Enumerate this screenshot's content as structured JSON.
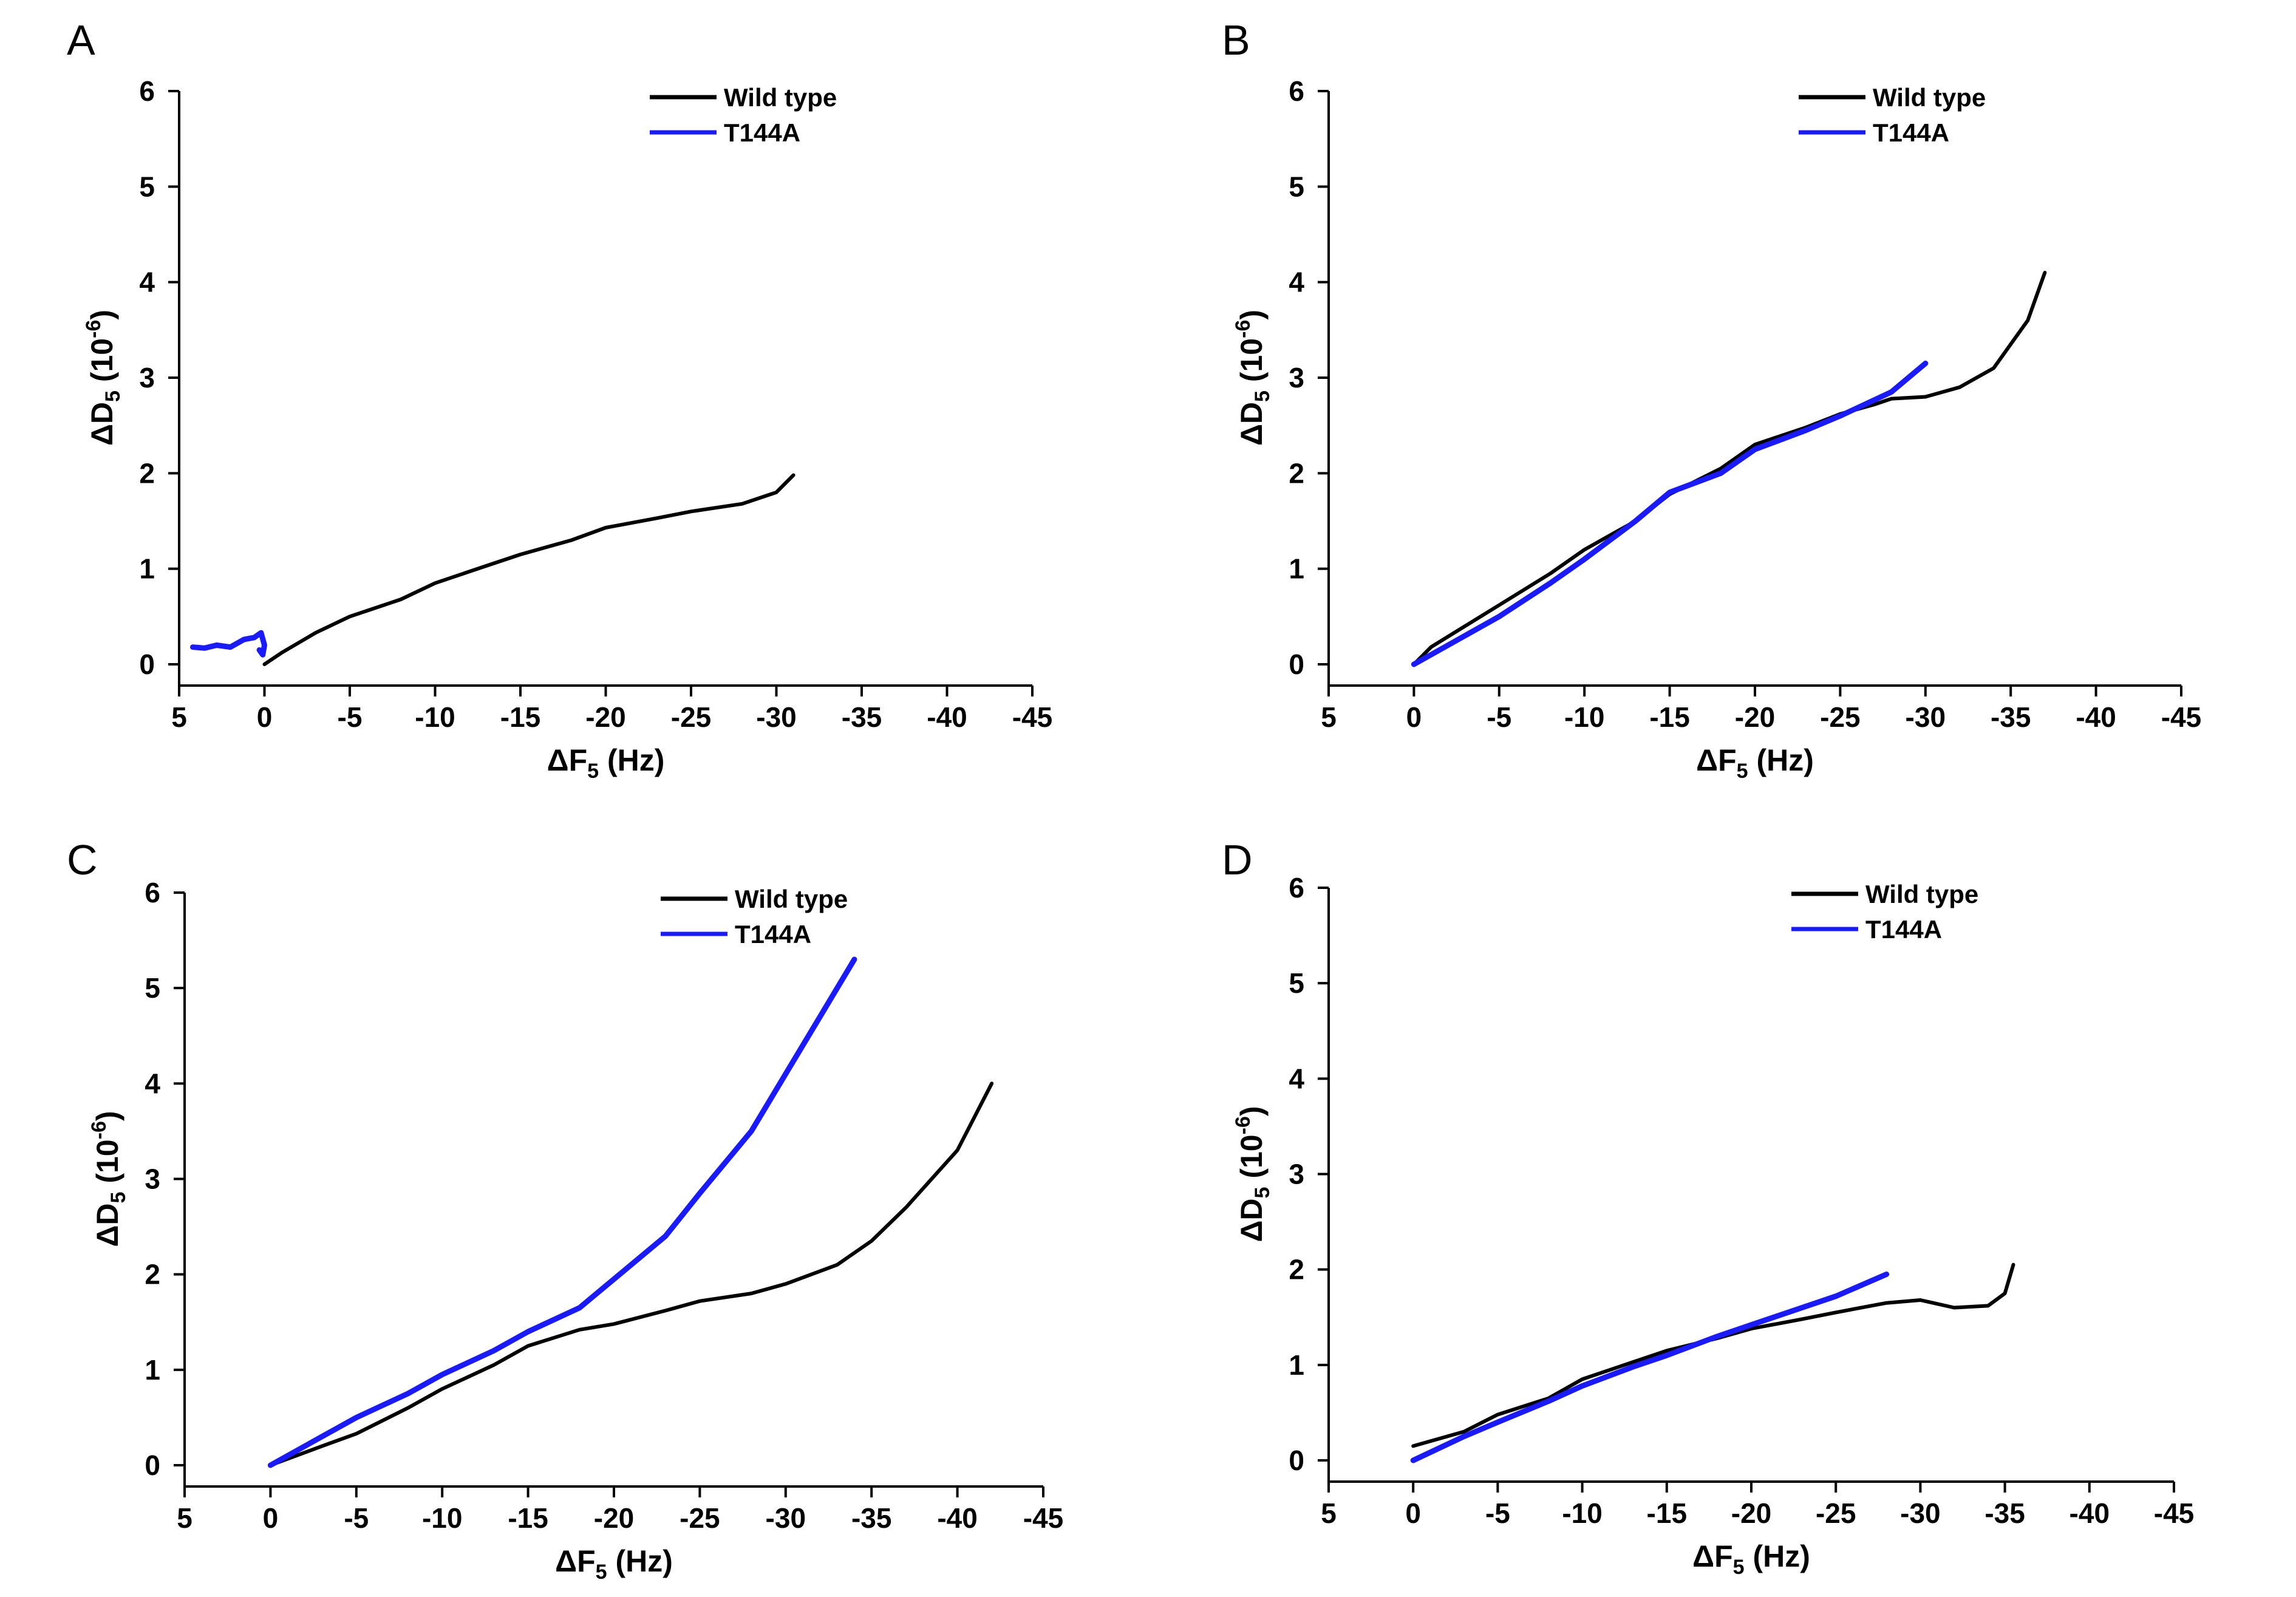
{
  "chart_data": [
    {
      "type": "line",
      "panel_label": "A",
      "xlabel": "ΔF5 (Hz)",
      "ylabel": "ΔD5 (10-6)",
      "xlim": [
        5,
        -45
      ],
      "ylim": [
        0,
        6
      ],
      "xticks": [
        "5",
        "0",
        "-5",
        "-10",
        "-15",
        "-20",
        "-25",
        "-30",
        "-35",
        "-40",
        "-45"
      ],
      "yticks": [
        "0",
        "1",
        "2",
        "3",
        "4",
        "5",
        "6"
      ],
      "legend_position": "top-right",
      "series": [
        {
          "name": "Wild type",
          "color": "#000000",
          "x": [
            0,
            -1,
            -3,
            -5,
            -8,
            -10,
            -13,
            -15,
            -18,
            -20,
            -23,
            -25,
            -28,
            -30,
            -31
          ],
          "y": [
            0.0,
            0.12,
            0.33,
            0.5,
            0.68,
            0.85,
            1.03,
            1.15,
            1.3,
            1.43,
            1.53,
            1.6,
            1.68,
            1.8,
            1.98
          ]
        },
        {
          "name": "T144A",
          "color": "#1a1aff",
          "x": [
            4.2,
            3.5,
            2.8,
            2.0,
            1.2,
            0.6,
            0.2,
            0,
            0.1,
            0.3
          ],
          "y": [
            0.18,
            0.17,
            0.2,
            0.18,
            0.26,
            0.28,
            0.33,
            0.2,
            0.1,
            0.15
          ]
        }
      ]
    },
    {
      "type": "line",
      "panel_label": "B",
      "xlabel": "ΔF5 (Hz)",
      "ylabel": "ΔD5 (10-6)",
      "xlim": [
        5,
        -45
      ],
      "ylim": [
        0,
        6
      ],
      "xticks": [
        "5",
        "0",
        "-5",
        "-10",
        "-15",
        "-20",
        "-25",
        "-30",
        "-35",
        "-40",
        "-45"
      ],
      "yticks": [
        "0",
        "1",
        "2",
        "3",
        "4",
        "5",
        "6"
      ],
      "legend_position": "top-right",
      "series": [
        {
          "name": "Wild type",
          "color": "#000000",
          "x": [
            0,
            -1,
            -3,
            -5,
            -8,
            -10,
            -13,
            -15,
            -18,
            -20,
            -23,
            -25,
            -27,
            -28,
            -30,
            -32,
            -34,
            -35,
            -36,
            -37
          ],
          "y": [
            0.0,
            0.18,
            0.4,
            0.62,
            0.95,
            1.2,
            1.5,
            1.78,
            2.05,
            2.3,
            2.48,
            2.62,
            2.72,
            2.78,
            2.8,
            2.9,
            3.1,
            3.35,
            3.6,
            4.1
          ]
        },
        {
          "name": "T144A",
          "color": "#1a1aff",
          "x": [
            0,
            -2,
            -5,
            -8,
            -10,
            -13,
            -15,
            -18,
            -20,
            -23,
            -25,
            -28,
            -30
          ],
          "y": [
            0.0,
            0.2,
            0.5,
            0.85,
            1.1,
            1.5,
            1.8,
            2.0,
            2.25,
            2.45,
            2.6,
            2.85,
            3.15
          ]
        }
      ]
    },
    {
      "type": "line",
      "panel_label": "C",
      "xlabel": "ΔF5 (Hz)",
      "ylabel": "ΔD5 (10-6)",
      "xlim": [
        5,
        -45
      ],
      "ylim": [
        0,
        6
      ],
      "xticks": [
        "5",
        "0",
        "-5",
        "-10",
        "-15",
        "-20",
        "-25",
        "-30",
        "-35",
        "-40",
        "-45"
      ],
      "yticks": [
        "0",
        "1",
        "2",
        "3",
        "4",
        "5",
        "6"
      ],
      "legend_position": "top-right",
      "series": [
        {
          "name": "Wild type",
          "color": "#000000",
          "x": [
            0,
            -3,
            -5,
            -8,
            -10,
            -13,
            -15,
            -18,
            -20,
            -23,
            -25,
            -28,
            -30,
            -33,
            -35,
            -37,
            -40,
            -42
          ],
          "y": [
            0.0,
            0.2,
            0.33,
            0.6,
            0.8,
            1.05,
            1.25,
            1.42,
            1.48,
            1.62,
            1.72,
            1.8,
            1.9,
            2.1,
            2.35,
            2.7,
            3.3,
            4.0
          ]
        },
        {
          "name": "T144A",
          "color": "#1a1aff",
          "x": [
            0,
            -3,
            -5,
            -8,
            -10,
            -13,
            -15,
            -18,
            -20,
            -23,
            -25,
            -28,
            -30,
            -32,
            -34
          ],
          "y": [
            0.0,
            0.3,
            0.5,
            0.75,
            0.95,
            1.2,
            1.4,
            1.65,
            1.95,
            2.4,
            2.85,
            3.5,
            4.1,
            4.7,
            5.3
          ]
        }
      ]
    },
    {
      "type": "line",
      "panel_label": "D",
      "xlabel": "ΔF5 (Hz)",
      "ylabel": "ΔD5 (10-6)",
      "xlim": [
        5,
        -45
      ],
      "ylim": [
        0,
        6
      ],
      "xticks": [
        "5",
        "0",
        "-5",
        "-10",
        "-15",
        "-20",
        "-25",
        "-30",
        "-35",
        "-40",
        "-45"
      ],
      "yticks": [
        "0",
        "1",
        "2",
        "3",
        "4",
        "5",
        "6"
      ],
      "legend_position": "top-right",
      "series": [
        {
          "name": "Wild type",
          "color": "#000000",
          "x": [
            0,
            -3,
            -5,
            -8,
            -10,
            -13,
            -15,
            -18,
            -20,
            -23,
            -25,
            -28,
            -30,
            -32,
            -34,
            -35,
            -35.5
          ],
          "y": [
            0.15,
            0.3,
            0.48,
            0.65,
            0.85,
            1.03,
            1.15,
            1.28,
            1.38,
            1.48,
            1.55,
            1.65,
            1.68,
            1.6,
            1.62,
            1.75,
            2.05
          ]
        },
        {
          "name": "T144A",
          "color": "#1a1aff",
          "x": [
            0,
            -3,
            -5,
            -8,
            -10,
            -13,
            -15,
            -18,
            -20,
            -23,
            -25,
            -28
          ],
          "y": [
            0.0,
            0.25,
            0.4,
            0.62,
            0.78,
            0.98,
            1.1,
            1.3,
            1.42,
            1.6,
            1.72,
            1.95
          ]
        }
      ]
    }
  ]
}
